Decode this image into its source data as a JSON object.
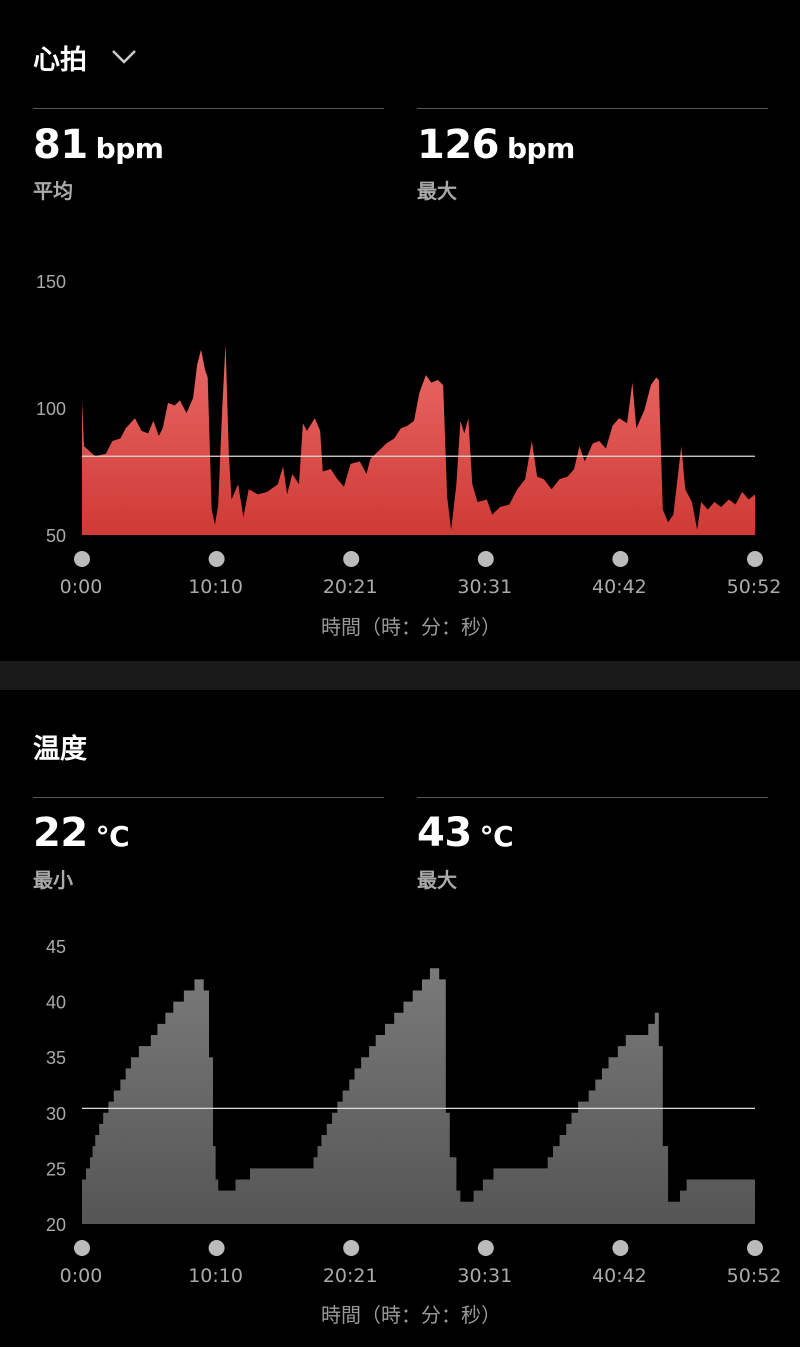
{
  "heart_rate": {
    "title": "心拍",
    "dropdown_icon": "chevron-down-icon",
    "avg_value": "81",
    "avg_unit": "bpm",
    "avg_label": "平均",
    "max_value": "126",
    "max_unit": "bpm",
    "max_label": "最大"
  },
  "temperature": {
    "title": "温度",
    "min_value": "22",
    "min_unit": "°C",
    "min_label": "最小",
    "max_value": "43",
    "max_unit": "°C",
    "max_label": "最大"
  },
  "chart_data": [
    {
      "type": "area",
      "xlabel": "時間（時：分：秒）",
      "x_unit": "minutes",
      "xlim": [
        0,
        50.87
      ],
      "ylim": [
        50,
        150
      ],
      "yticks": [
        "150",
        "100",
        "50"
      ],
      "xticks": [
        "0:00",
        "10:10",
        "20:21",
        "30:31",
        "40:42",
        "50:52"
      ],
      "reference_line": 81,
      "color": "#e05050",
      "points": [
        [
          0,
          103
        ],
        [
          0.15,
          85
        ],
        [
          1.0,
          81
        ],
        [
          1.8,
          82
        ],
        [
          2.3,
          87
        ],
        [
          2.9,
          88
        ],
        [
          3.3,
          92
        ],
        [
          4.0,
          96
        ],
        [
          4.5,
          91
        ],
        [
          5.0,
          90
        ],
        [
          5.4,
          95
        ],
        [
          5.8,
          89
        ],
        [
          6.1,
          92
        ],
        [
          6.5,
          102
        ],
        [
          7.0,
          101
        ],
        [
          7.4,
          103
        ],
        [
          7.9,
          98
        ],
        [
          8.4,
          104
        ],
        [
          8.7,
          117
        ],
        [
          9.0,
          123
        ],
        [
          9.3,
          115
        ],
        [
          9.5,
          112
        ],
        [
          9.8,
          60
        ],
        [
          10.05,
          54
        ],
        [
          10.3,
          62
        ],
        [
          10.6,
          100
        ],
        [
          10.85,
          125
        ],
        [
          11.1,
          82
        ],
        [
          11.3,
          64
        ],
        [
          11.8,
          70
        ],
        [
          12.2,
          57
        ],
        [
          12.6,
          68
        ],
        [
          13.3,
          66
        ],
        [
          14.0,
          67
        ],
        [
          14.8,
          70
        ],
        [
          15.2,
          77
        ],
        [
          15.5,
          66
        ],
        [
          15.9,
          74
        ],
        [
          16.4,
          70
        ],
        [
          16.7,
          94
        ],
        [
          17.0,
          91
        ],
        [
          17.6,
          96
        ],
        [
          18.0,
          91
        ],
        [
          18.2,
          75
        ],
        [
          18.8,
          76
        ],
        [
          19.3,
          72
        ],
        [
          19.8,
          69
        ],
        [
          20.3,
          78
        ],
        [
          21.0,
          79
        ],
        [
          21.5,
          74
        ],
        [
          21.8,
          80
        ],
        [
          22.4,
          83
        ],
        [
          23.0,
          86
        ],
        [
          23.6,
          88
        ],
        [
          24.1,
          92
        ],
        [
          24.6,
          93
        ],
        [
          25.1,
          95
        ],
        [
          25.5,
          106
        ],
        [
          26.0,
          113
        ],
        [
          26.4,
          110
        ],
        [
          26.9,
          111
        ],
        [
          27.3,
          109
        ],
        [
          27.6,
          65
        ],
        [
          27.9,
          52
        ],
        [
          28.3,
          70
        ],
        [
          28.6,
          95
        ],
        [
          28.9,
          90
        ],
        [
          29.2,
          96
        ],
        [
          29.5,
          70
        ],
        [
          29.9,
          63
        ],
        [
          30.6,
          64
        ],
        [
          31.0,
          58
        ],
        [
          31.6,
          61
        ],
        [
          32.3,
          62
        ],
        [
          32.9,
          68
        ],
        [
          33.5,
          72
        ],
        [
          34.0,
          87
        ],
        [
          34.4,
          73
        ],
        [
          34.9,
          72
        ],
        [
          35.5,
          68
        ],
        [
          36.1,
          72
        ],
        [
          36.7,
          73
        ],
        [
          37.2,
          76
        ],
        [
          37.6,
          85
        ],
        [
          38.0,
          79
        ],
        [
          38.6,
          86
        ],
        [
          39.1,
          87
        ],
        [
          39.6,
          84
        ],
        [
          40.1,
          93
        ],
        [
          40.6,
          96
        ],
        [
          41.2,
          94
        ],
        [
          41.6,
          110
        ],
        [
          41.9,
          92
        ],
        [
          42.5,
          99
        ],
        [
          43.0,
          109
        ],
        [
          43.4,
          112
        ],
        [
          43.6,
          111
        ],
        [
          43.9,
          60
        ],
        [
          44.3,
          55
        ],
        [
          44.7,
          58
        ],
        [
          45.1,
          76
        ],
        [
          45.3,
          85
        ],
        [
          45.6,
          68
        ],
        [
          46.1,
          63
        ],
        [
          46.5,
          52
        ],
        [
          46.8,
          63
        ],
        [
          47.3,
          60
        ],
        [
          47.8,
          63
        ],
        [
          48.3,
          61
        ],
        [
          48.9,
          64
        ],
        [
          49.4,
          62
        ],
        [
          49.9,
          67
        ],
        [
          50.4,
          64
        ],
        [
          50.87,
          66
        ]
      ]
    },
    {
      "type": "area",
      "step": true,
      "xlabel": "時間（時：分：秒）",
      "x_unit": "minutes",
      "xlim": [
        0,
        50.87
      ],
      "ylim": [
        20,
        45
      ],
      "yticks": [
        "45",
        "40",
        "35",
        "30",
        "25",
        "20"
      ],
      "xticks": [
        "0:00",
        "10:10",
        "20:21",
        "30:31",
        "40:42",
        "50:52"
      ],
      "reference_line": 30.4,
      "color": "#666666",
      "points": [
        [
          0,
          24
        ],
        [
          0.3,
          25
        ],
        [
          0.6,
          26
        ],
        [
          0.8,
          27
        ],
        [
          1.0,
          28
        ],
        [
          1.3,
          29
        ],
        [
          1.6,
          30
        ],
        [
          2.0,
          31
        ],
        [
          2.4,
          32
        ],
        [
          2.9,
          33
        ],
        [
          3.3,
          34
        ],
        [
          3.7,
          35
        ],
        [
          4.3,
          36
        ],
        [
          5.2,
          37
        ],
        [
          5.7,
          38
        ],
        [
          6.3,
          39
        ],
        [
          6.9,
          40
        ],
        [
          7.7,
          41
        ],
        [
          8.5,
          42
        ],
        [
          9.2,
          41
        ],
        [
          9.6,
          35
        ],
        [
          9.9,
          27
        ],
        [
          10.1,
          24
        ],
        [
          10.3,
          23
        ],
        [
          11.6,
          24
        ],
        [
          12.7,
          25
        ],
        [
          17.5,
          26
        ],
        [
          17.8,
          27
        ],
        [
          18.1,
          28
        ],
        [
          18.5,
          29
        ],
        [
          18.9,
          30
        ],
        [
          19.3,
          31
        ],
        [
          19.7,
          32
        ],
        [
          20.2,
          33
        ],
        [
          20.6,
          34
        ],
        [
          21.1,
          35
        ],
        [
          21.7,
          36
        ],
        [
          22.2,
          37
        ],
        [
          22.9,
          38
        ],
        [
          23.6,
          39
        ],
        [
          24.3,
          40
        ],
        [
          25.0,
          41
        ],
        [
          25.7,
          42
        ],
        [
          26.3,
          43
        ],
        [
          27.0,
          42
        ],
        [
          27.5,
          30
        ],
        [
          27.8,
          26
        ],
        [
          28.3,
          23
        ],
        [
          28.6,
          22
        ],
        [
          29.6,
          23
        ],
        [
          30.3,
          24
        ],
        [
          31.1,
          25
        ],
        [
          35.2,
          26
        ],
        [
          35.6,
          27
        ],
        [
          36.1,
          28
        ],
        [
          36.6,
          29
        ],
        [
          37.0,
          30
        ],
        [
          37.5,
          31
        ],
        [
          38.3,
          32
        ],
        [
          38.8,
          33
        ],
        [
          39.3,
          34
        ],
        [
          39.8,
          35
        ],
        [
          40.5,
          36
        ],
        [
          41.1,
          37
        ],
        [
          42.8,
          38
        ],
        [
          43.3,
          39
        ],
        [
          43.6,
          36
        ],
        [
          43.9,
          27
        ],
        [
          44.3,
          22
        ],
        [
          45.2,
          23
        ],
        [
          45.7,
          24
        ],
        [
          50.87,
          24
        ]
      ]
    }
  ]
}
